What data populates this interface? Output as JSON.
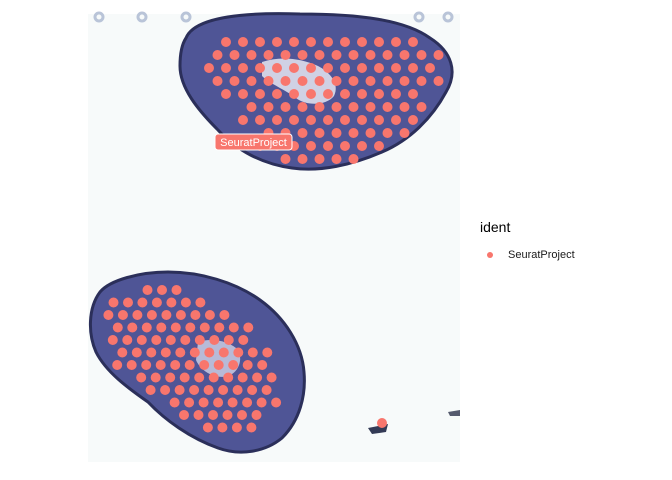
{
  "chart_data": {
    "type": "scatter",
    "title": "",
    "xlabel": "",
    "ylabel": "",
    "grid": false,
    "point_color": "#F8766D",
    "label_text_color": "#ffffff",
    "legend": {
      "title": "ident",
      "placement": "right",
      "entries": [
        {
          "label": "SeuratProject",
          "color": "#F8766D"
        }
      ]
    },
    "cluster_label": "SeuratProject",
    "series": [
      {
        "name": "SeuratProject",
        "note_rows": "spots on the tissue hexagonal grid; rows listed as [row, col_start, col_end]",
        "upper_section_rows": [
          [
            0,
            2,
            13
          ],
          [
            1,
            1,
            14
          ],
          [
            2,
            1,
            14
          ],
          [
            3,
            1,
            14
          ],
          [
            4,
            2,
            13
          ],
          [
            5,
            3,
            13
          ],
          [
            6,
            3,
            13
          ],
          [
            7,
            4,
            12
          ],
          [
            8,
            4,
            11
          ],
          [
            9,
            5,
            9
          ]
        ],
        "lower_section_rows": [
          [
            0,
            3,
            5
          ],
          [
            1,
            0,
            6
          ],
          [
            2,
            0,
            8
          ],
          [
            3,
            0,
            9
          ],
          [
            4,
            0,
            9
          ],
          [
            5,
            0,
            10
          ],
          [
            6,
            0,
            10
          ],
          [
            7,
            1,
            10
          ],
          [
            8,
            2,
            10
          ],
          [
            9,
            3,
            10
          ],
          [
            10,
            4,
            9
          ],
          [
            11,
            5,
            8
          ]
        ],
        "isolated_spots": 1
      }
    ]
  },
  "background": {
    "tissue_color": "#4a4f93",
    "tissue_dark": "#2b2f5a"
  }
}
